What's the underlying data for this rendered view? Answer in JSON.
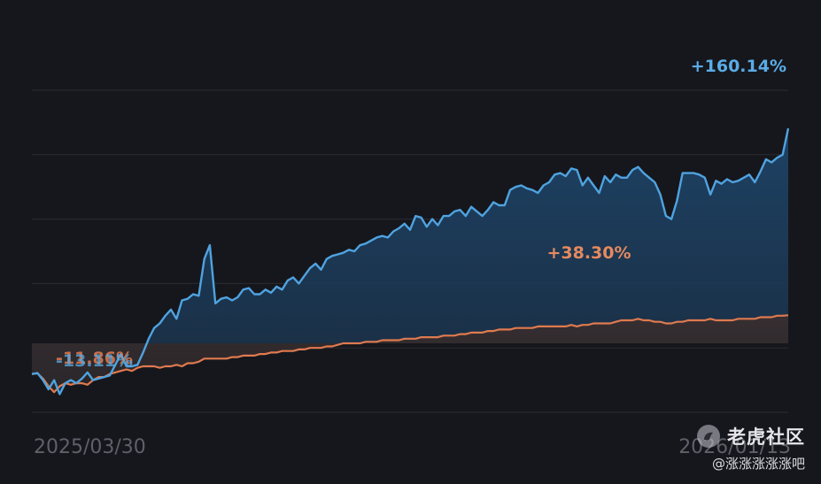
{
  "chart_data": {
    "type": "line",
    "x_start": "2025/03/30",
    "x_end": "2026/01/13",
    "x_tick_labels": [
      "2025/03/30",
      "2026/01/13"
    ],
    "ylim": [
      -25,
      185
    ],
    "y_gridlines": [
      -25,
      17,
      59,
      101,
      143,
      185
    ],
    "legend": "none",
    "series": [
      {
        "color": "#4fa3e0",
        "fill": "#1d3d5c",
        "end_label": "+160.14%",
        "min_label": "-13.11%",
        "points": [
          [
            0,
            0
          ],
          [
            1,
            0.6
          ],
          [
            2,
            -4
          ],
          [
            3,
            -10
          ],
          [
            4,
            -4
          ],
          [
            5,
            -13.11
          ],
          [
            6,
            -6
          ],
          [
            7,
            -4
          ],
          [
            8,
            -6
          ],
          [
            9,
            -3
          ],
          [
            10,
            1
          ],
          [
            11,
            -4
          ],
          [
            12,
            -3
          ],
          [
            13,
            -2
          ],
          [
            14,
            -1
          ],
          [
            15,
            6
          ],
          [
            16,
            13
          ],
          [
            17,
            5
          ],
          [
            18,
            5
          ],
          [
            19,
            6
          ],
          [
            20,
            14
          ],
          [
            21,
            23
          ],
          [
            22,
            30
          ],
          [
            23,
            33
          ],
          [
            24,
            38
          ],
          [
            25,
            42
          ],
          [
            26,
            36
          ],
          [
            27,
            48
          ],
          [
            28,
            49
          ],
          [
            29,
            52
          ],
          [
            30,
            51
          ],
          [
            31,
            75
          ],
          [
            32,
            84
          ],
          [
            33,
            46
          ],
          [
            34,
            49
          ],
          [
            35,
            50
          ],
          [
            36,
            48
          ],
          [
            37,
            50
          ],
          [
            38,
            55
          ],
          [
            39,
            56
          ],
          [
            40,
            52
          ],
          [
            41,
            52
          ],
          [
            42,
            55
          ],
          [
            43,
            53
          ],
          [
            44,
            57
          ],
          [
            45,
            55
          ],
          [
            46,
            61
          ],
          [
            47,
            63
          ],
          [
            48,
            59
          ],
          [
            49,
            64
          ],
          [
            50,
            69
          ],
          [
            51,
            72
          ],
          [
            52,
            68
          ],
          [
            53,
            75
          ],
          [
            54,
            77
          ],
          [
            55,
            78
          ],
          [
            56,
            79
          ],
          [
            57,
            81
          ],
          [
            58,
            80
          ],
          [
            59,
            84
          ],
          [
            60,
            85
          ],
          [
            61,
            87
          ],
          [
            62,
            89
          ],
          [
            63,
            90
          ],
          [
            64,
            89
          ],
          [
            65,
            93
          ],
          [
            66,
            95
          ],
          [
            67,
            98
          ],
          [
            68,
            94
          ],
          [
            69,
            103
          ],
          [
            70,
            102
          ],
          [
            71,
            96
          ],
          [
            72,
            101
          ],
          [
            73,
            97
          ],
          [
            74,
            103
          ],
          [
            75,
            103
          ],
          [
            76,
            106
          ],
          [
            77,
            107
          ],
          [
            78,
            103
          ],
          [
            79,
            109
          ],
          [
            80,
            106
          ],
          [
            81,
            103
          ],
          [
            82,
            107
          ],
          [
            83,
            112
          ],
          [
            84,
            110
          ],
          [
            85,
            110
          ],
          [
            86,
            120
          ],
          [
            87,
            122
          ],
          [
            88,
            123
          ],
          [
            89,
            121
          ],
          [
            90,
            120
          ],
          [
            91,
            118
          ],
          [
            92,
            123
          ],
          [
            93,
            125
          ],
          [
            94,
            130
          ],
          [
            95,
            131
          ],
          [
            96,
            129
          ],
          [
            97,
            134
          ],
          [
            98,
            133
          ],
          [
            99,
            123
          ],
          [
            100,
            128
          ],
          [
            101,
            123
          ],
          [
            102,
            118
          ],
          [
            103,
            129
          ],
          [
            104,
            125
          ],
          [
            105,
            130
          ],
          [
            106,
            128
          ],
          [
            107,
            128
          ],
          [
            108,
            133
          ],
          [
            109,
            135
          ],
          [
            110,
            131
          ],
          [
            111,
            128
          ],
          [
            112,
            125
          ],
          [
            113,
            117
          ],
          [
            114,
            103
          ],
          [
            115,
            101
          ],
          [
            116,
            113
          ],
          [
            117,
            131
          ],
          [
            118,
            131
          ],
          [
            119,
            131
          ],
          [
            120,
            130
          ],
          [
            121,
            128
          ],
          [
            122,
            117
          ],
          [
            123,
            126
          ],
          [
            124,
            124
          ],
          [
            125,
            127
          ],
          [
            126,
            125
          ],
          [
            127,
            126
          ],
          [
            128,
            128
          ],
          [
            129,
            130
          ],
          [
            130,
            125
          ],
          [
            131,
            132
          ],
          [
            132,
            140
          ],
          [
            133,
            138
          ],
          [
            134,
            141
          ],
          [
            135,
            143
          ],
          [
            136,
            160.14
          ]
        ]
      },
      {
        "color": "#e07a4f",
        "fill": "#312b2e",
        "end_label": "+38.30%",
        "min_label": "-11.86%",
        "peak_label": "+38.30%",
        "points": [
          [
            0,
            0
          ],
          [
            1,
            0.4
          ],
          [
            2,
            -3
          ],
          [
            3,
            -8
          ],
          [
            4,
            -11.86
          ],
          [
            5,
            -8
          ],
          [
            6,
            -6
          ],
          [
            7,
            -7
          ],
          [
            8,
            -6
          ],
          [
            9,
            -6
          ],
          [
            10,
            -7
          ],
          [
            11,
            -4
          ],
          [
            12,
            -2
          ],
          [
            13,
            -2
          ],
          [
            14,
            0
          ],
          [
            15,
            1
          ],
          [
            16,
            2
          ],
          [
            17,
            3
          ],
          [
            18,
            2
          ],
          [
            19,
            4
          ],
          [
            20,
            5
          ],
          [
            21,
            5
          ],
          [
            22,
            5
          ],
          [
            23,
            4
          ],
          [
            24,
            5
          ],
          [
            25,
            5
          ],
          [
            26,
            6
          ],
          [
            27,
            5
          ],
          [
            28,
            7
          ],
          [
            29,
            7
          ],
          [
            30,
            8
          ],
          [
            31,
            10
          ],
          [
            32,
            10
          ],
          [
            33,
            10
          ],
          [
            34,
            10
          ],
          [
            35,
            10
          ],
          [
            36,
            11
          ],
          [
            37,
            11
          ],
          [
            38,
            12
          ],
          [
            39,
            12
          ],
          [
            40,
            12
          ],
          [
            41,
            13
          ],
          [
            42,
            13
          ],
          [
            43,
            14
          ],
          [
            44,
            14
          ],
          [
            45,
            15
          ],
          [
            46,
            15
          ],
          [
            47,
            15
          ],
          [
            48,
            16
          ],
          [
            49,
            16
          ],
          [
            50,
            17
          ],
          [
            51,
            17
          ],
          [
            52,
            17
          ],
          [
            53,
            18
          ],
          [
            54,
            18
          ],
          [
            55,
            19
          ],
          [
            56,
            20
          ],
          [
            57,
            20
          ],
          [
            58,
            20
          ],
          [
            59,
            20
          ],
          [
            60,
            21
          ],
          [
            61,
            21
          ],
          [
            62,
            21
          ],
          [
            63,
            22
          ],
          [
            64,
            22
          ],
          [
            65,
            22
          ],
          [
            66,
            22
          ],
          [
            67,
            23
          ],
          [
            68,
            23
          ],
          [
            69,
            23
          ],
          [
            70,
            24
          ],
          [
            71,
            24
          ],
          [
            72,
            24
          ],
          [
            73,
            24
          ],
          [
            74,
            25
          ],
          [
            75,
            25
          ],
          [
            76,
            25
          ],
          [
            77,
            26
          ],
          [
            78,
            26
          ],
          [
            79,
            27
          ],
          [
            80,
            27
          ],
          [
            81,
            27
          ],
          [
            82,
            28
          ],
          [
            83,
            28
          ],
          [
            84,
            29
          ],
          [
            85,
            29
          ],
          [
            86,
            29
          ],
          [
            87,
            30
          ],
          [
            88,
            30
          ],
          [
            89,
            30
          ],
          [
            90,
            30
          ],
          [
            91,
            31
          ],
          [
            92,
            31
          ],
          [
            93,
            31
          ],
          [
            94,
            31
          ],
          [
            95,
            31
          ],
          [
            96,
            31
          ],
          [
            97,
            32
          ],
          [
            98,
            31
          ],
          [
            99,
            32
          ],
          [
            100,
            32
          ],
          [
            101,
            33
          ],
          [
            102,
            33
          ],
          [
            103,
            33
          ],
          [
            104,
            33
          ],
          [
            105,
            34
          ],
          [
            106,
            35
          ],
          [
            107,
            35
          ],
          [
            108,
            35
          ],
          [
            109,
            36
          ],
          [
            110,
            35
          ],
          [
            111,
            35
          ],
          [
            112,
            34
          ],
          [
            113,
            34
          ],
          [
            114,
            33
          ],
          [
            115,
            33
          ],
          [
            116,
            34
          ],
          [
            117,
            34
          ],
          [
            118,
            35
          ],
          [
            119,
            35
          ],
          [
            120,
            35
          ],
          [
            121,
            35
          ],
          [
            122,
            36
          ],
          [
            123,
            35
          ],
          [
            124,
            35
          ],
          [
            125,
            35
          ],
          [
            126,
            35
          ],
          [
            127,
            36
          ],
          [
            128,
            36
          ],
          [
            129,
            36
          ],
          [
            130,
            36
          ],
          [
            131,
            37
          ],
          [
            132,
            37
          ],
          [
            133,
            37
          ],
          [
            134,
            38
          ],
          [
            135,
            38
          ],
          [
            136,
            38.3
          ]
        ]
      }
    ]
  },
  "watermark": {
    "title": "老虎社区",
    "user": "@涨涨涨涨涨吧",
    "icon": "tiger-community-logo-icon"
  }
}
